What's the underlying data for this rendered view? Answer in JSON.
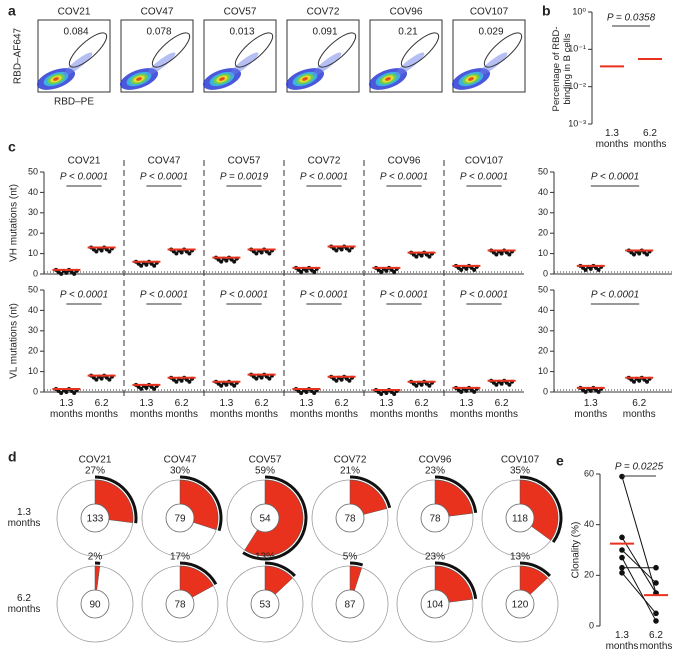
{
  "panel_labels": [
    "a",
    "b",
    "c",
    "d",
    "e"
  ],
  "chart_data": [
    {
      "type": "flow",
      "samples": [
        "COV21",
        "COV47",
        "COV57",
        "COV72",
        "COV96",
        "COV107"
      ],
      "values": [
        0.084,
        0.078,
        0.013,
        0.091,
        0.21,
        0.029
      ],
      "xlabel": "RBD–PE",
      "ylabel": "RBD–AF647"
    },
    {
      "type": "dot-log",
      "ylabel": "Percentage of RBD-binding in B cells",
      "categories": [
        "1.3 months",
        "6.2 months"
      ],
      "values": [
        0.035,
        0.055
      ],
      "color": "#e8321e",
      "annotation": "P = 0.0358",
      "log": true,
      "ylim": [
        0.001,
        1
      ],
      "yticks": [
        {
          "value": 1,
          "label": "10⁰"
        },
        {
          "value": 0.1,
          "label": "10⁻¹"
        },
        {
          "value": 0.01,
          "label": "10⁻²"
        },
        {
          "value": 0.001,
          "label": "10⁻³"
        }
      ]
    },
    {
      "type": "dot-groups",
      "categories": [
        "1.3 months",
        "6.2 months"
      ],
      "color": "#e8321e",
      "ylabels": [
        "VH mutations (nt)",
        "VL mutations (nt)"
      ],
      "ylim": [
        0,
        50
      ],
      "yticks": [
        0,
        10,
        20,
        30,
        40,
        50
      ],
      "groups": [
        {
          "name": "COV21",
          "vh_p": "P < 0.0001",
          "vh": [
            2,
            13
          ],
          "vl_p": "P < 0.0001",
          "vl": [
            1.5,
            8
          ]
        },
        {
          "name": "COV47",
          "vh_p": "P < 0.0001",
          "vh": [
            6,
            12
          ],
          "vl_p": "P < 0.0001",
          "vl": [
            3.5,
            7
          ]
        },
        {
          "name": "COV57",
          "vh_p": "P = 0.0019",
          "vh": [
            8,
            12
          ],
          "vl_p": "P < 0.0001",
          "vl": [
            5,
            8.5
          ]
        },
        {
          "name": "COV72",
          "vh_p": "P < 0.0001",
          "vh": [
            3,
            13.5
          ],
          "vl_p": "P < 0.0001",
          "vl": [
            1.5,
            7.5
          ]
        },
        {
          "name": "COV96",
          "vh_p": "P < 0.0001",
          "vh": [
            3,
            10.5
          ],
          "vl_p": "P < 0.0001",
          "vl": [
            1,
            5
          ]
        },
        {
          "name": "COV107",
          "vh_p": "P < 0.0001",
          "vh": [
            4,
            11.5
          ],
          "vl_p": "P < 0.0001",
          "vl": [
            2,
            5.5
          ]
        },
        {
          "name": null,
          "vh_p": "P < 0.0001",
          "vh": [
            4,
            11.5
          ],
          "vl_p": "P < 0.0001",
          "vl": [
            2,
            7
          ]
        }
      ]
    },
    {
      "type": "pie",
      "categories": [
        "COV21",
        "COV47",
        "COV57",
        "COV72",
        "COV96",
        "COV107"
      ],
      "row_labels": [
        "1.3 months",
        "6.2 months"
      ],
      "values": [
        [
          27,
          30,
          59,
          21,
          23,
          35
        ],
        [
          2,
          17,
          13,
          5,
          23,
          13
        ]
      ],
      "value_labels": [
        [
          "27%",
          "30%",
          "59%",
          "21%",
          "23%",
          "35%"
        ],
        [
          "2%",
          "17%",
          "13%",
          "5%",
          "23%",
          "13%"
        ]
      ],
      "totals": [
        [
          133,
          79,
          54,
          78,
          78,
          118
        ],
        [
          90,
          78,
          53,
          87,
          104,
          120
        ]
      ],
      "color": "#e8321e"
    },
    {
      "type": "paired",
      "ylabel": "Clonality (%)",
      "categories": [
        "1.3 months",
        "6.2 months"
      ],
      "series": [
        {
          "values": [
            27,
            2
          ]
        },
        {
          "values": [
            30,
            17
          ]
        },
        {
          "values": [
            59,
            13
          ]
        },
        {
          "values": [
            21,
            5
          ]
        },
        {
          "values": [
            23,
            23
          ]
        },
        {
          "values": [
            35,
            13
          ]
        }
      ],
      "means": [
        32.5,
        12.2
      ],
      "color": "#e8321e",
      "annotation": "P = 0.0225",
      "ylim": [
        0,
        60
      ],
      "yticks": [
        0,
        20,
        40,
        60
      ]
    }
  ]
}
